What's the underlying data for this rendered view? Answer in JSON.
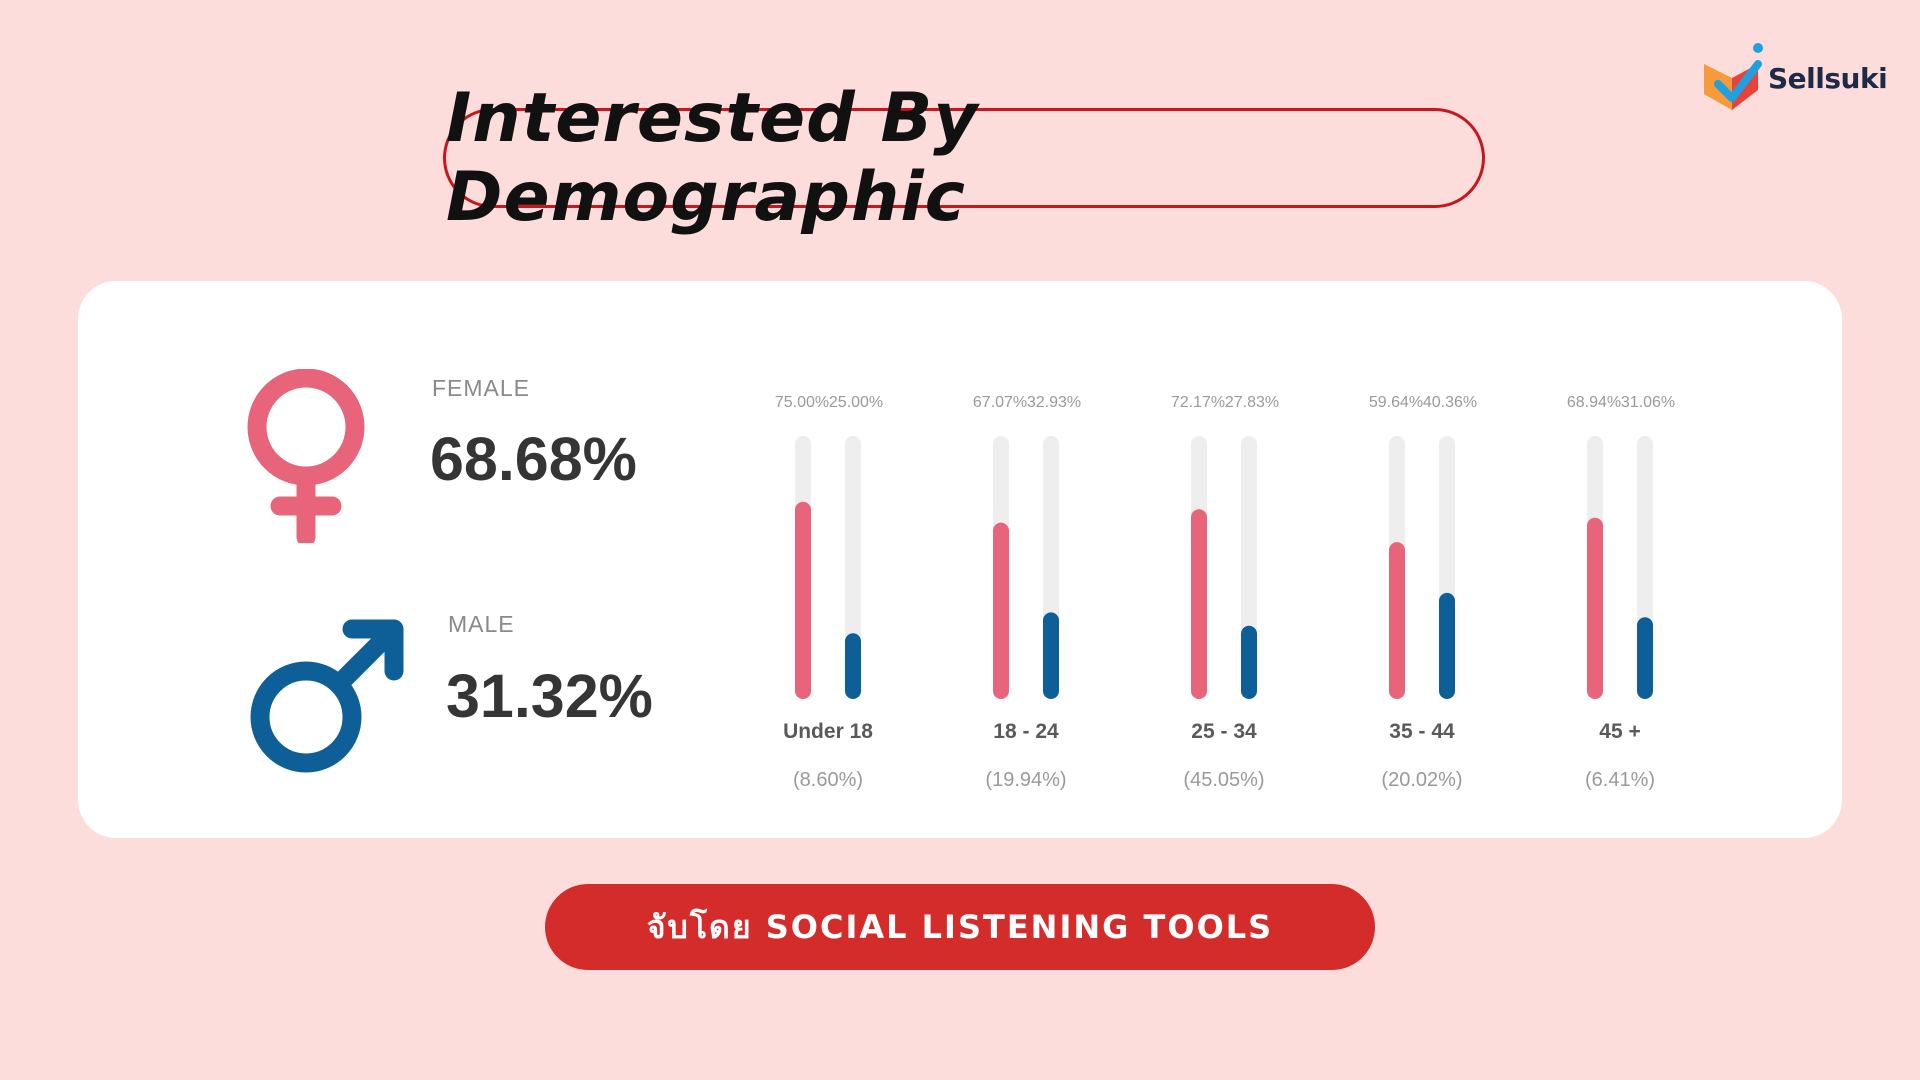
{
  "brand": {
    "name": "Sellsuki"
  },
  "title": "Interested By Demographic",
  "colors": {
    "female": "#e8647a",
    "male": "#0e5f98",
    "track": "#eeeeee",
    "accent": "#d42b2b"
  },
  "gender": {
    "female": {
      "label": "FEMALE",
      "percent": "68.68%"
    },
    "male": {
      "label": "MALE",
      "percent": "31.32%"
    }
  },
  "chart_data": {
    "type": "bar",
    "title": "Interested By Demographic",
    "categories": [
      "Under 18",
      "18 - 24",
      "25 - 34",
      "35 - 44",
      "45 +"
    ],
    "category_shares": [
      "(8.60%)",
      "(19.94%)",
      "(45.05%)",
      "(20.02%)",
      "(6.41%)"
    ],
    "series": [
      {
        "name": "Female",
        "values": [
          75.0,
          67.07,
          72.17,
          59.64,
          68.94
        ],
        "labels": [
          "75.00%",
          "67.07%",
          "72.17%",
          "59.64%",
          "68.94%"
        ]
      },
      {
        "name": "Male",
        "values": [
          25.0,
          32.93,
          27.83,
          40.36,
          31.06
        ],
        "labels": [
          "25.00%",
          "32.93%",
          "27.83%",
          "40.36%",
          "31.06%"
        ]
      }
    ],
    "ylim": [
      0,
      100
    ]
  },
  "footer": {
    "label": "จับโดย SOCIAL LISTENING TOOLS"
  }
}
